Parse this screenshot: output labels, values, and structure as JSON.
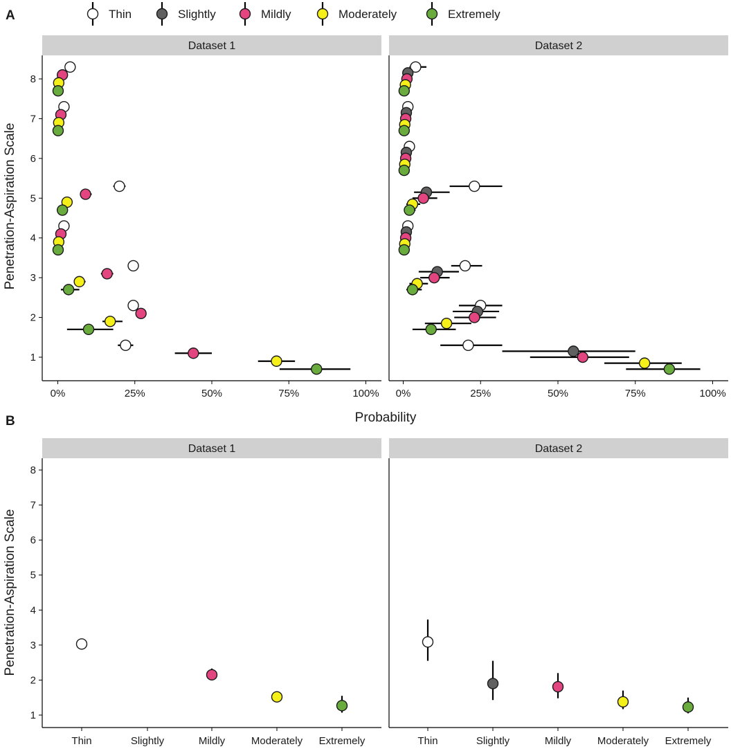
{
  "chart_data": [
    {
      "panel": "A",
      "type": "scatter",
      "subtype": "dot-with-horizontal-error-bars",
      "xlabel": "Probability",
      "ylabel": "Penetration-Aspiration Scale",
      "xlim": [
        0,
        1
      ],
      "ylim": [
        0.5,
        8.5
      ],
      "x_ticks": [
        0,
        0.25,
        0.5,
        0.75,
        1
      ],
      "x_tick_labels": [
        "0%",
        "25%",
        "50%",
        "75%",
        "100%"
      ],
      "y_ticks": [
        1,
        2,
        3,
        4,
        5,
        6,
        7,
        8
      ],
      "y_tick_labels": [
        "1",
        "2",
        "3",
        "4",
        "5",
        "6",
        "7",
        "8"
      ],
      "facets": [
        {
          "title": "Dataset 1",
          "series": [
            {
              "name": "Thin",
              "points": [
                {
                  "pas": 1,
                  "p": 0.22,
                  "lo": 0.195,
                  "hi": 0.245
                },
                {
                  "pas": 2,
                  "p": 0.245,
                  "lo": 0.235,
                  "hi": 0.255
                },
                {
                  "pas": 3,
                  "p": 0.245,
                  "lo": 0.235,
                  "hi": 0.255
                },
                {
                  "pas": 4,
                  "p": 0.02,
                  "lo": 0.015,
                  "hi": 0.025
                },
                {
                  "pas": 5,
                  "p": 0.2,
                  "lo": 0.18,
                  "hi": 0.22
                },
                {
                  "pas": 7,
                  "p": 0.02,
                  "lo": 0.015,
                  "hi": 0.025
                },
                {
                  "pas": 8,
                  "p": 0.04,
                  "lo": 0.035,
                  "hi": 0.045
                }
              ]
            },
            {
              "name": "Mildly",
              "points": [
                {
                  "pas": 1,
                  "p": 0.44,
                  "lo": 0.38,
                  "hi": 0.5
                },
                {
                  "pas": 2,
                  "p": 0.27,
                  "lo": 0.26,
                  "hi": 0.28
                },
                {
                  "pas": 3,
                  "p": 0.16,
                  "lo": 0.14,
                  "hi": 0.18
                },
                {
                  "pas": 4,
                  "p": 0.01,
                  "lo": 0.005,
                  "hi": 0.015
                },
                {
                  "pas": 5,
                  "p": 0.09,
                  "lo": 0.08,
                  "hi": 0.11
                },
                {
                  "pas": 7,
                  "p": 0.01,
                  "lo": 0.005,
                  "hi": 0.015
                },
                {
                  "pas": 8,
                  "p": 0.015,
                  "lo": 0.01,
                  "hi": 0.02
                }
              ]
            },
            {
              "name": "Moderately",
              "points": [
                {
                  "pas": 1,
                  "p": 0.71,
                  "lo": 0.65,
                  "hi": 0.77
                },
                {
                  "pas": 2,
                  "p": 0.17,
                  "lo": 0.145,
                  "hi": 0.21
                },
                {
                  "pas": 3,
                  "p": 0.07,
                  "lo": 0.06,
                  "hi": 0.09
                },
                {
                  "pas": 4,
                  "p": 0.003,
                  "lo": 0.0,
                  "hi": 0.006
                },
                {
                  "pas": 5,
                  "p": 0.03,
                  "lo": 0.02,
                  "hi": 0.04
                },
                {
                  "pas": 7,
                  "p": 0.003,
                  "lo": 0.0,
                  "hi": 0.006
                },
                {
                  "pas": 8,
                  "p": 0.003,
                  "lo": 0.0,
                  "hi": 0.006
                }
              ]
            },
            {
              "name": "Extremely",
              "points": [
                {
                  "pas": 1,
                  "p": 0.84,
                  "lo": 0.72,
                  "hi": 0.95
                },
                {
                  "pas": 2,
                  "p": 0.1,
                  "lo": 0.03,
                  "hi": 0.18
                },
                {
                  "pas": 3,
                  "p": 0.035,
                  "lo": 0.01,
                  "hi": 0.07
                },
                {
                  "pas": 4,
                  "p": 0.001,
                  "lo": 0.0,
                  "hi": 0.003
                },
                {
                  "pas": 5,
                  "p": 0.015,
                  "lo": 0.01,
                  "hi": 0.02
                },
                {
                  "pas": 7,
                  "p": 0.001,
                  "lo": 0.0,
                  "hi": 0.003
                },
                {
                  "pas": 8,
                  "p": 0.001,
                  "lo": 0.0,
                  "hi": 0.003
                }
              ]
            }
          ]
        },
        {
          "title": "Dataset 2",
          "series": [
            {
              "name": "Thin",
              "points": [
                {
                  "pas": 1,
                  "p": 0.21,
                  "lo": 0.12,
                  "hi": 0.32
                },
                {
                  "pas": 2,
                  "p": 0.25,
                  "lo": 0.18,
                  "hi": 0.32
                },
                {
                  "pas": 3,
                  "p": 0.2,
                  "lo": 0.155,
                  "hi": 0.255
                },
                {
                  "pas": 4,
                  "p": 0.015,
                  "lo": 0.005,
                  "hi": 0.025
                },
                {
                  "pas": 5,
                  "p": 0.23,
                  "lo": 0.15,
                  "hi": 0.32
                },
                {
                  "pas": 6,
                  "p": 0.02,
                  "lo": 0.01,
                  "hi": 0.035
                },
                {
                  "pas": 7,
                  "p": 0.015,
                  "lo": 0.005,
                  "hi": 0.025
                },
                {
                  "pas": 8,
                  "p": 0.04,
                  "lo": 0.02,
                  "hi": 0.075
                }
              ]
            },
            {
              "name": "Slightly",
              "points": [
                {
                  "pas": 1,
                  "p": 0.55,
                  "lo": 0.32,
                  "hi": 0.75
                },
                {
                  "pas": 2,
                  "p": 0.24,
                  "lo": 0.16,
                  "hi": 0.31
                },
                {
                  "pas": 3,
                  "p": 0.11,
                  "lo": 0.05,
                  "hi": 0.18
                },
                {
                  "pas": 4,
                  "p": 0.01,
                  "lo": 0.0,
                  "hi": 0.02
                },
                {
                  "pas": 5,
                  "p": 0.075,
                  "lo": 0.035,
                  "hi": 0.15
                },
                {
                  "pas": 6,
                  "p": 0.01,
                  "lo": 0.0,
                  "hi": 0.02
                },
                {
                  "pas": 7,
                  "p": 0.01,
                  "lo": 0.0,
                  "hi": 0.02
                },
                {
                  "pas": 8,
                  "p": 0.015,
                  "lo": 0.005,
                  "hi": 0.03
                }
              ]
            },
            {
              "name": "Mildly",
              "points": [
                {
                  "pas": 1,
                  "p": 0.58,
                  "lo": 0.41,
                  "hi": 0.73
                },
                {
                  "pas": 2,
                  "p": 0.23,
                  "lo": 0.165,
                  "hi": 0.3
                },
                {
                  "pas": 3,
                  "p": 0.1,
                  "lo": 0.055,
                  "hi": 0.15
                },
                {
                  "pas": 4,
                  "p": 0.008,
                  "lo": 0.0,
                  "hi": 0.016
                },
                {
                  "pas": 5,
                  "p": 0.065,
                  "lo": 0.03,
                  "hi": 0.11
                },
                {
                  "pas": 6,
                  "p": 0.008,
                  "lo": 0.0,
                  "hi": 0.016
                },
                {
                  "pas": 7,
                  "p": 0.008,
                  "lo": 0.0,
                  "hi": 0.016
                },
                {
                  "pas": 8,
                  "p": 0.012,
                  "lo": 0.004,
                  "hi": 0.025
                }
              ]
            },
            {
              "name": "Moderately",
              "points": [
                {
                  "pas": 1,
                  "p": 0.78,
                  "lo": 0.65,
                  "hi": 0.9
                },
                {
                  "pas": 2,
                  "p": 0.14,
                  "lo": 0.07,
                  "hi": 0.22
                },
                {
                  "pas": 3,
                  "p": 0.045,
                  "lo": 0.02,
                  "hi": 0.08
                },
                {
                  "pas": 4,
                  "p": 0.005,
                  "lo": 0.0,
                  "hi": 0.01
                },
                {
                  "pas": 5,
                  "p": 0.03,
                  "lo": 0.01,
                  "hi": 0.055
                },
                {
                  "pas": 6,
                  "p": 0.005,
                  "lo": 0.0,
                  "hi": 0.01
                },
                {
                  "pas": 7,
                  "p": 0.005,
                  "lo": 0.0,
                  "hi": 0.01
                },
                {
                  "pas": 8,
                  "p": 0.007,
                  "lo": 0.0,
                  "hi": 0.015
                }
              ]
            },
            {
              "name": "Extremely",
              "points": [
                {
                  "pas": 1,
                  "p": 0.86,
                  "lo": 0.72,
                  "hi": 0.96
                },
                {
                  "pas": 2,
                  "p": 0.09,
                  "lo": 0.03,
                  "hi": 0.17
                },
                {
                  "pas": 3,
                  "p": 0.03,
                  "lo": 0.01,
                  "hi": 0.06
                },
                {
                  "pas": 4,
                  "p": 0.003,
                  "lo": 0.0,
                  "hi": 0.006
                },
                {
                  "pas": 5,
                  "p": 0.02,
                  "lo": 0.005,
                  "hi": 0.04
                },
                {
                  "pas": 6,
                  "p": 0.003,
                  "lo": 0.0,
                  "hi": 0.006
                },
                {
                  "pas": 7,
                  "p": 0.003,
                  "lo": 0.0,
                  "hi": 0.006
                },
                {
                  "pas": 8,
                  "p": 0.003,
                  "lo": 0.0,
                  "hi": 0.006
                }
              ]
            }
          ]
        }
      ]
    },
    {
      "panel": "B",
      "type": "scatter",
      "subtype": "dot-with-vertical-error-bars",
      "xlabel": "",
      "ylabel": "Penetration-Aspiration Scale",
      "ylim": [
        0.85,
        8.3
      ],
      "y_ticks": [
        1,
        2,
        3,
        4,
        5,
        6,
        7,
        8
      ],
      "y_tick_labels": [
        "1",
        "2",
        "3",
        "4",
        "5",
        "6",
        "7",
        "8"
      ],
      "categories": [
        "Thin",
        "Slightly",
        "Mildly",
        "Moderately",
        "Extremely"
      ],
      "facets": [
        {
          "title": "Dataset 1",
          "points": [
            {
              "category": "Thin",
              "value": 3.03,
              "lo": 2.9,
              "hi": 3.17
            },
            {
              "category": "Mildly",
              "value": 2.15,
              "lo": 2.0,
              "hi": 2.33
            },
            {
              "category": "Moderately",
              "value": 1.52,
              "lo": 1.45,
              "hi": 1.6
            },
            {
              "category": "Extremely",
              "value": 1.27,
              "lo": 1.07,
              "hi": 1.55
            }
          ]
        },
        {
          "title": "Dataset 2",
          "points": [
            {
              "category": "Thin",
              "value": 3.09,
              "lo": 2.55,
              "hi": 3.73
            },
            {
              "category": "Slightly",
              "value": 1.9,
              "lo": 1.43,
              "hi": 2.55
            },
            {
              "category": "Mildly",
              "value": 1.81,
              "lo": 1.48,
              "hi": 2.2
            },
            {
              "category": "Moderately",
              "value": 1.38,
              "lo": 1.17,
              "hi": 1.7
            },
            {
              "category": "Extremely",
              "value": 1.23,
              "lo": 1.05,
              "hi": 1.5
            }
          ]
        }
      ]
    }
  ],
  "legend": {
    "placement": "top",
    "items": [
      {
        "label": "Thin",
        "color": "#ffffff"
      },
      {
        "label": "Slightly",
        "color": "#606060"
      },
      {
        "label": "Mildly",
        "color": "#e2457f"
      },
      {
        "label": "Moderately",
        "color": "#f5ef1a"
      },
      {
        "label": "Extremely",
        "color": "#6aab3e"
      }
    ]
  },
  "panel_tags": [
    "A",
    "B"
  ],
  "colors": {
    "strip_bg": "#d0d0d0",
    "axis": "#000000",
    "outline": "#1a1a1a"
  }
}
